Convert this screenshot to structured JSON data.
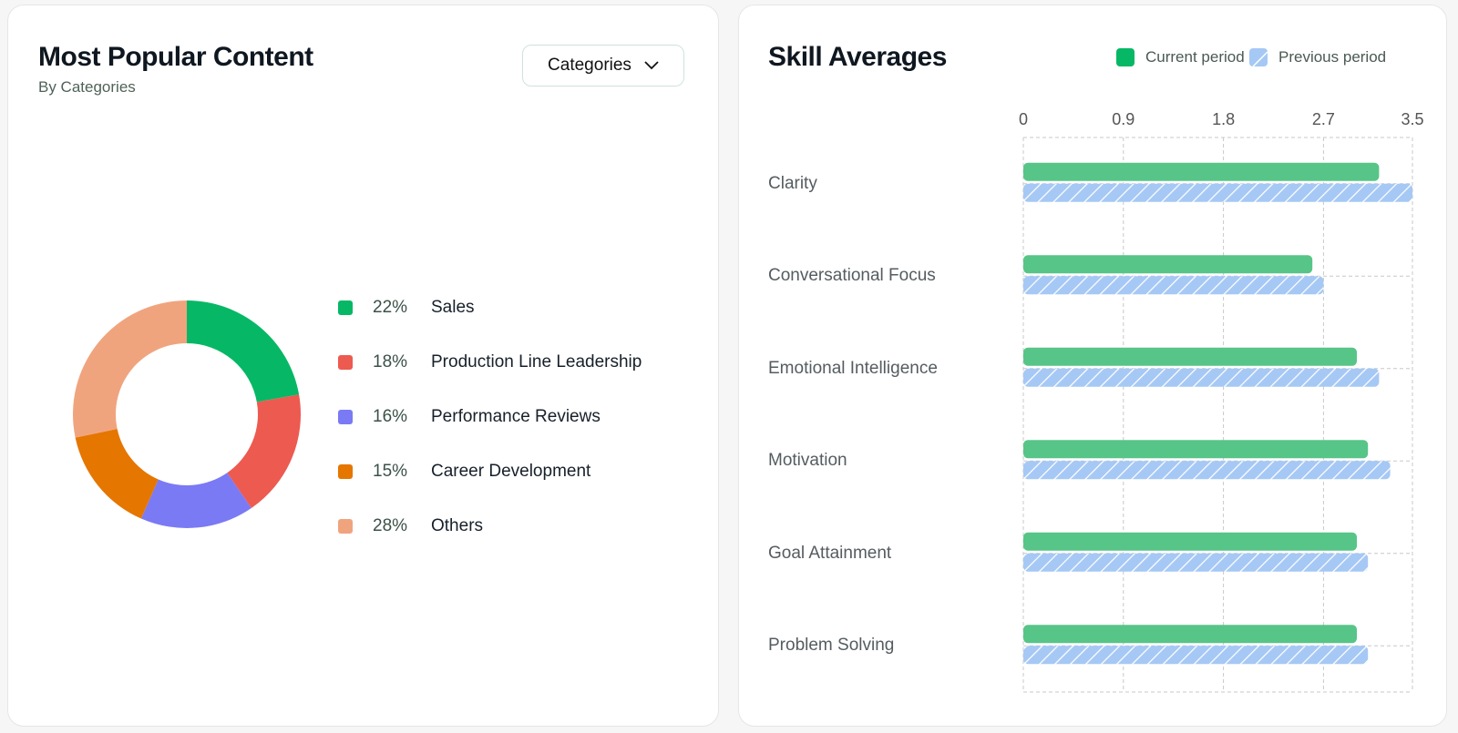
{
  "left_card": {
    "title": "Most Popular Content",
    "subtitle": "By Categories",
    "dropdown_label": "Categories"
  },
  "right_card": {
    "title": "Skill Averages",
    "legend": [
      {
        "label": "Current period",
        "color": "#57c587"
      },
      {
        "label": "Previous period",
        "color": "#a6c8f5"
      }
    ]
  },
  "chart_data": [
    {
      "type": "pie",
      "variant": "donut",
      "categories": [
        "Sales",
        "Production Line Leadership",
        "Performance Reviews",
        "Career Development",
        "Others"
      ],
      "values": [
        22,
        18,
        16,
        15,
        28
      ],
      "labels": [
        "22%",
        "18%",
        "16%",
        "15%",
        "28%"
      ],
      "colors": [
        "#06b865",
        "#ed5a50",
        "#7a7af5",
        "#e57600",
        "#f0a47e"
      ],
      "legend": "right"
    },
    {
      "type": "bar",
      "orientation": "horizontal",
      "title": "Skill Averages",
      "categories": [
        "Clarity",
        "Conversational Focus",
        "Emotional Intelligence",
        "Motivation",
        "Goal Attainment",
        "Problem Solving"
      ],
      "series": [
        {
          "name": "Current period",
          "values": [
            3.2,
            2.6,
            3.0,
            3.1,
            3.0,
            3.0
          ]
        },
        {
          "name": "Previous period",
          "values": [
            3.5,
            2.7,
            3.2,
            3.3,
            3.1,
            3.1
          ]
        }
      ],
      "xticks": [
        "0",
        "0.9",
        "1.8",
        "2.7",
        "3.5"
      ],
      "xtick_values": [
        0,
        0.9,
        1.8,
        2.7,
        3.5
      ],
      "xlim": [
        0,
        3.5
      ],
      "grid": true,
      "legend": "top-right"
    }
  ]
}
